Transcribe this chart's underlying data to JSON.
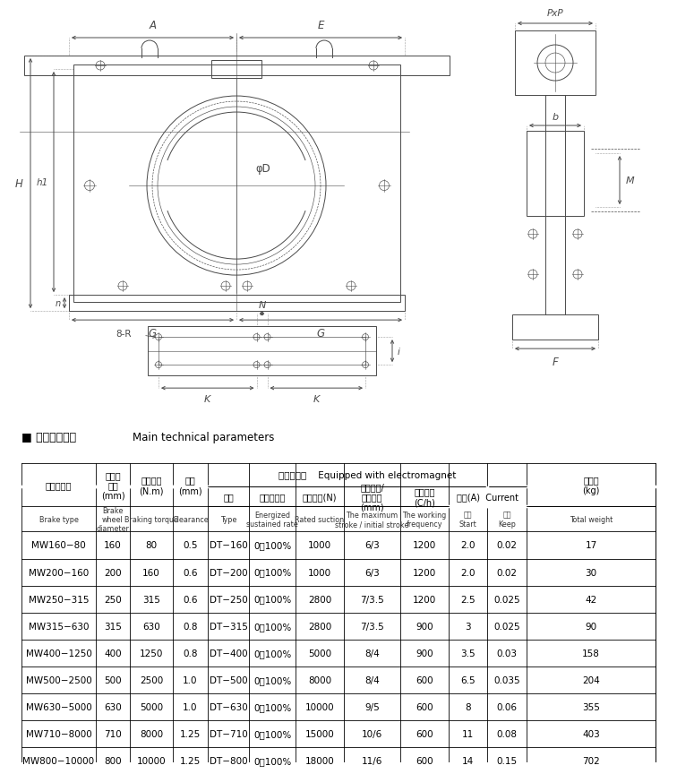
{
  "section_title_zh": "■ 主要技术参数",
  "section_title_en": "Main technical parameters",
  "rows": [
    [
      "MW160−80",
      "160",
      "80",
      "0.5",
      "DT−160",
      "0～100%",
      "1000",
      "6/3",
      "1200",
      "2.0",
      "0.02",
      "17"
    ],
    [
      "MW200−160",
      "200",
      "160",
      "0.6",
      "DT−200",
      "0～100%",
      "1000",
      "6/3",
      "1200",
      "2.0",
      "0.02",
      "30"
    ],
    [
      "MW250−315",
      "250",
      "315",
      "0.6",
      "DT−250",
      "0～100%",
      "2800",
      "7/3.5",
      "1200",
      "2.5",
      "0.025",
      "42"
    ],
    [
      "MW315−630",
      "315",
      "630",
      "0.8",
      "DT−315",
      "0～100%",
      "2800",
      "7/3.5",
      "900",
      "3",
      "0.025",
      "90"
    ],
    [
      "MW400−1250",
      "400",
      "1250",
      "0.8",
      "DT−400",
      "0～100%",
      "5000",
      "8/4",
      "900",
      "3.5",
      "0.03",
      "158"
    ],
    [
      "MW500−2500",
      "500",
      "2500",
      "1.0",
      "DT−500",
      "0～100%",
      "8000",
      "8/4",
      "600",
      "6.5",
      "0.035",
      "204"
    ],
    [
      "MW630−5000",
      "630",
      "5000",
      "1.0",
      "DT−630",
      "0～100%",
      "10000",
      "9/5",
      "600",
      "8",
      "0.06",
      "355"
    ],
    [
      "MW710−8000",
      "710",
      "8000",
      "1.25",
      "DT−710",
      "0～100%",
      "15000",
      "10/6",
      "600",
      "11",
      "0.08",
      "403"
    ],
    [
      "MW800−10000",
      "800",
      "10000",
      "1.25",
      "DT−800",
      "0～100%",
      "18000",
      "11/6",
      "600",
      "14",
      "0.15",
      "702"
    ]
  ],
  "bg_color": "#ffffff",
  "dc": "#4a4a4a",
  "black": "#000000"
}
